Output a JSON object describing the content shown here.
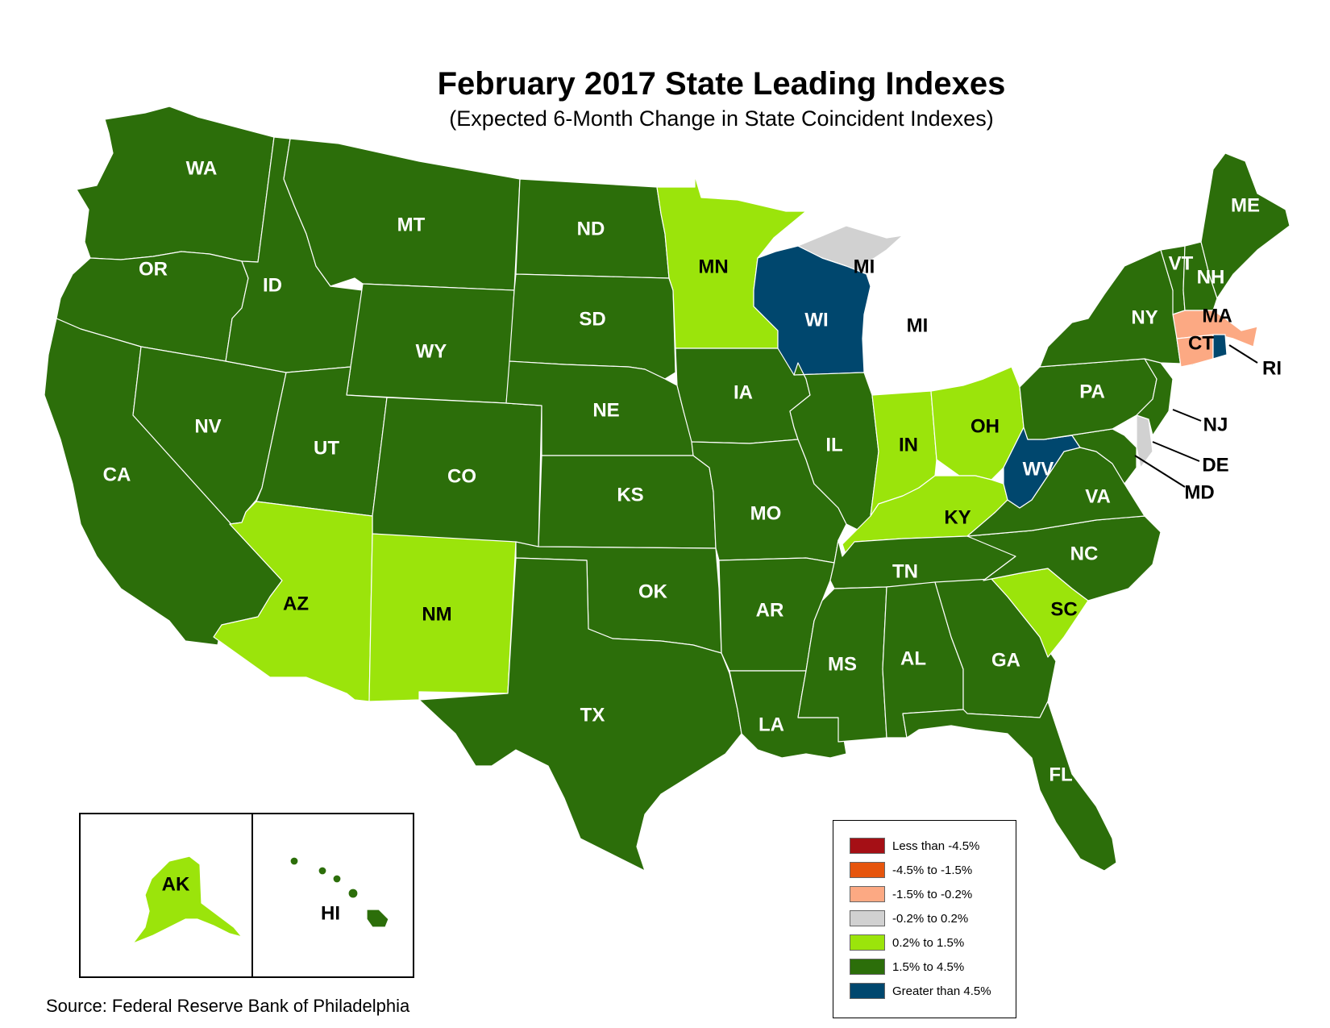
{
  "title": "February 2017 State Leading Indexes",
  "subtitle": "(Expected 6-Month Change in State Coincident Indexes)",
  "source": "Source: Federal Reserve Bank of Philadelphia",
  "colors": {
    "lt_neg4_5": "#a50f15",
    "neg4_5_to_neg1_5": "#e6550d",
    "neg1_5_to_neg0_2": "#fca983",
    "neg0_2_to_0_2": "#d1d1d1",
    "p0_2_to_1_5": "#9be40b",
    "p1_5_to_4_5": "#2c6e0a",
    "gt_4_5": "#00476e"
  },
  "legend": [
    {
      "label": "Less than -4.5%",
      "color": "#a50f15"
    },
    {
      "label": "-4.5% to -1.5%",
      "color": "#e6550d"
    },
    {
      "label": "-1.5% to -0.2%",
      "color": "#fca983"
    },
    {
      "label": "-0.2% to 0.2%",
      "color": "#d1d1d1"
    },
    {
      "label": "0.2% to 1.5%",
      "color": "#9be40b"
    },
    {
      "label": "1.5% to 4.5%",
      "color": "#2c6e0a"
    },
    {
      "label": "Greater than 4.5%",
      "color": "#00476e"
    }
  ],
  "states": {
    "WA": {
      "label": "WA",
      "category": "1.5% to 4.5%"
    },
    "OR": {
      "label": "OR",
      "category": "1.5% to 4.5%"
    },
    "CA": {
      "label": "CA",
      "category": "1.5% to 4.5%"
    },
    "NV": {
      "label": "NV",
      "category": "1.5% to 4.5%"
    },
    "ID": {
      "label": "ID",
      "category": "1.5% to 4.5%"
    },
    "MT": {
      "label": "MT",
      "category": "1.5% to 4.5%"
    },
    "WY": {
      "label": "WY",
      "category": "1.5% to 4.5%"
    },
    "UT": {
      "label": "UT",
      "category": "1.5% to 4.5%"
    },
    "CO": {
      "label": "CO",
      "category": "1.5% to 4.5%"
    },
    "AZ": {
      "label": "AZ",
      "category": "0.2% to 1.5%"
    },
    "NM": {
      "label": "NM",
      "category": "0.2% to 1.5%"
    },
    "ND": {
      "label": "ND",
      "category": "1.5% to 4.5%"
    },
    "SD": {
      "label": "SD",
      "category": "1.5% to 4.5%"
    },
    "NE": {
      "label": "NE",
      "category": "1.5% to 4.5%"
    },
    "KS": {
      "label": "KS",
      "category": "1.5% to 4.5%"
    },
    "OK": {
      "label": "OK",
      "category": "1.5% to 4.5%"
    },
    "TX": {
      "label": "TX",
      "category": "1.5% to 4.5%"
    },
    "MN": {
      "label": "MN",
      "category": "0.2% to 1.5%"
    },
    "IA": {
      "label": "IA",
      "category": "1.5% to 4.5%"
    },
    "MO": {
      "label": "MO",
      "category": "1.5% to 4.5%"
    },
    "AR": {
      "label": "AR",
      "category": "1.5% to 4.5%"
    },
    "LA": {
      "label": "LA",
      "category": "1.5% to 4.5%"
    },
    "WI": {
      "label": "WI",
      "category": "Greater than 4.5%"
    },
    "IL": {
      "label": "IL",
      "category": "1.5% to 4.5%"
    },
    "MI": {
      "label": "MI",
      "category": "-0.2% to 0.2%"
    },
    "IN": {
      "label": "IN",
      "category": "0.2% to 1.5%"
    },
    "OH": {
      "label": "OH",
      "category": "0.2% to 1.5%"
    },
    "KY": {
      "label": "KY",
      "category": "0.2% to 1.5%"
    },
    "TN": {
      "label": "TN",
      "category": "1.5% to 4.5%"
    },
    "MS": {
      "label": "MS",
      "category": "1.5% to 4.5%"
    },
    "AL": {
      "label": "AL",
      "category": "1.5% to 4.5%"
    },
    "GA": {
      "label": "GA",
      "category": "1.5% to 4.5%"
    },
    "FL": {
      "label": "FL",
      "category": "1.5% to 4.5%"
    },
    "SC": {
      "label": "SC",
      "category": "0.2% to 1.5%"
    },
    "NC": {
      "label": "NC",
      "category": "1.5% to 4.5%"
    },
    "VA": {
      "label": "VA",
      "category": "1.5% to 4.5%"
    },
    "WV": {
      "label": "WV",
      "category": "Greater than 4.5%"
    },
    "PA": {
      "label": "PA",
      "category": "1.5% to 4.5%"
    },
    "NY": {
      "label": "NY",
      "category": "1.5% to 4.5%"
    },
    "VT": {
      "label": "VT",
      "category": "1.5% to 4.5%"
    },
    "NH": {
      "label": "NH",
      "category": "1.5% to 4.5%"
    },
    "ME": {
      "label": "ME",
      "category": "1.5% to 4.5%"
    },
    "MA": {
      "label": "MA",
      "category": "-1.5% to -0.2%"
    },
    "CT": {
      "label": "CT",
      "category": "-1.5% to -0.2%"
    },
    "RI": {
      "label": "RI",
      "category": "Greater than 4.5%"
    },
    "NJ": {
      "label": "NJ",
      "category": "1.5% to 4.5%"
    },
    "DE": {
      "label": "DE",
      "category": "-0.2% to 0.2%"
    },
    "MD": {
      "label": "MD",
      "category": "1.5% to 4.5%"
    },
    "AK": {
      "label": "AK",
      "category": "0.2% to 1.5%"
    },
    "HI": {
      "label": "HI",
      "category": "1.5% to 4.5%"
    }
  }
}
